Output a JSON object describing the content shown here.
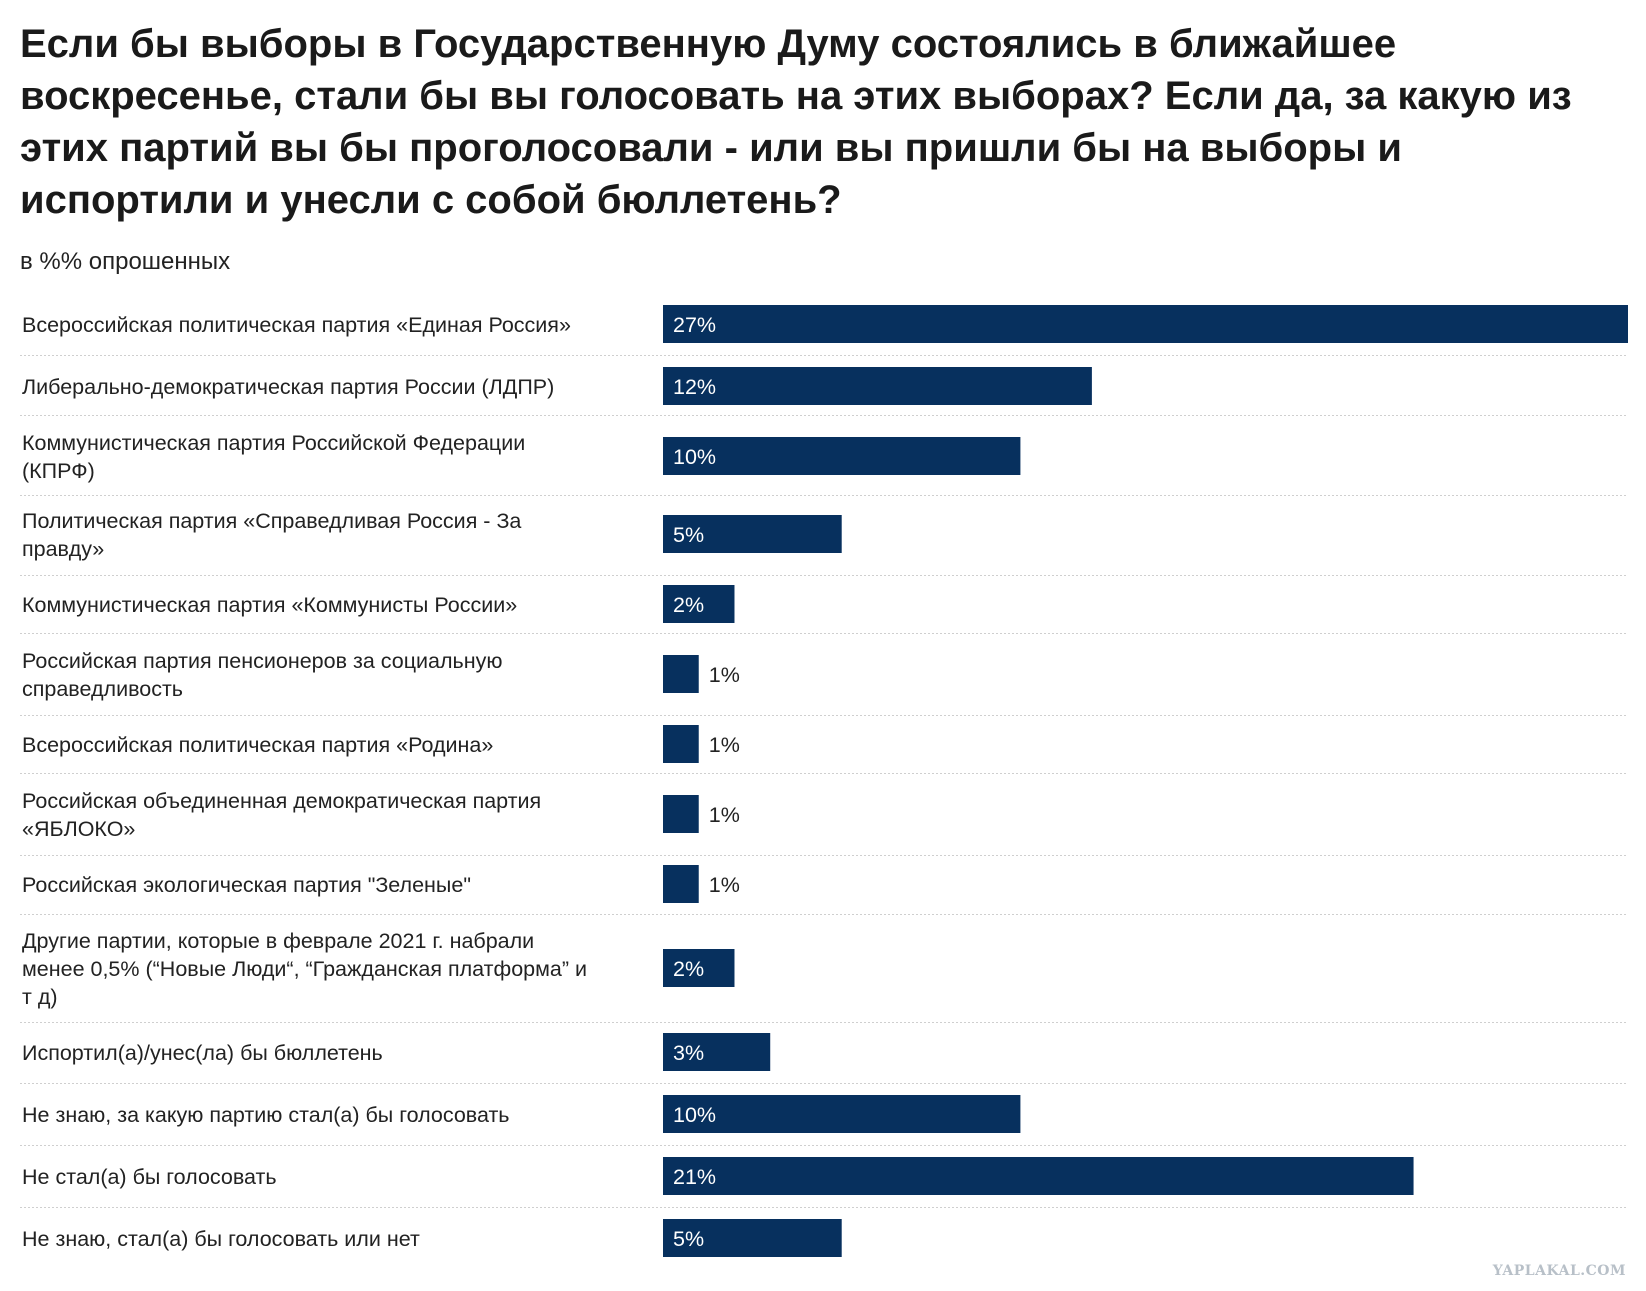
{
  "chart_data": {
    "type": "bar",
    "orientation": "horizontal",
    "title": "Если бы выборы в Государственную Думу состоялись в ближайшее воскресенье, стали бы вы голосовать на этих выборах? Если да, за какую из этих партий вы бы проголосовали - или вы пришли бы на выборы и испортили и унесли с собой бюллетень?",
    "subtitle": "в %% опрошенных",
    "categories": [
      "Всероссийская политическая партия «Единая Россия»",
      "Либерально-демократическая партия России (ЛДПР)",
      "Коммунистическая партия Российской Федерации (КПРФ)",
      "Политическая партия «Справедливая Россия - За правду»",
      "Коммунистическая партия «Коммунисты России»",
      "Российская партия пенсионеров за социальную справедливость",
      "Всероссийская политическая партия «Родина»",
      "Российская объединенная демократическая партия «ЯБЛОКО»",
      "Российская экологическая партия \"Зеленые\"",
      "Другие партии, которые в феврале 2021 г. набрали менее 0,5% (“Новые Люди“, “Гражданская платформа” и т д)",
      "Испортил(а)/унес(ла) бы бюллетень",
      "Не знаю, за какую партию стал(а) бы голосовать",
      "Не стал(а) бы голосовать",
      "Не знаю, стал(а) бы голосовать или нет"
    ],
    "values": [
      27,
      12,
      10,
      5,
      2,
      1,
      1,
      1,
      1,
      2,
      3,
      10,
      21,
      5
    ],
    "value_labels": [
      "27%",
      "12%",
      "10%",
      "5%",
      "2%",
      "1%",
      "1%",
      "1%",
      "1%",
      "2%",
      "3%",
      "10%",
      "21%",
      "5%"
    ],
    "xlim": [
      0,
      27
    ],
    "bar_color": "#07305e",
    "grid": false,
    "legend": "none"
  },
  "watermark": "YAPLAKAL.COM"
}
